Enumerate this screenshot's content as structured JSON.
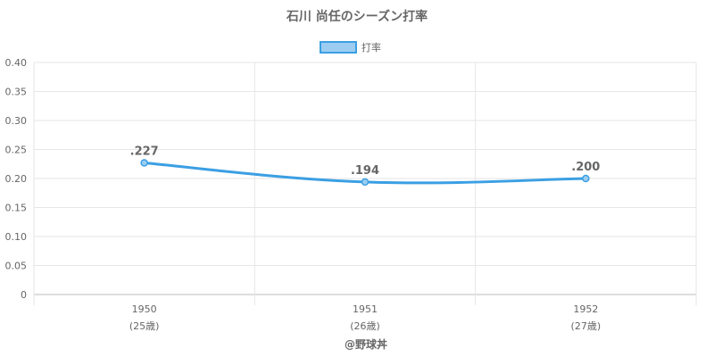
{
  "chart_data": {
    "type": "line",
    "title": "石川 尚任のシーズン打率",
    "legend": {
      "label": "打率",
      "position": "top"
    },
    "categories": [
      "1950",
      "1951",
      "1952"
    ],
    "category_sublabels": [
      "(25歳)",
      "(26歳)",
      "(27歳)"
    ],
    "series": [
      {
        "name": "打率",
        "values": [
          0.227,
          0.194,
          0.2
        ],
        "labels": [
          ".227",
          ".194",
          ".200"
        ]
      }
    ],
    "y_ticks": [
      "0",
      "0.05",
      "0.10",
      "0.15",
      "0.20",
      "0.25",
      "0.30",
      "0.35",
      "0.40"
    ],
    "ylim": [
      0,
      0.4
    ],
    "grid": true,
    "colors": {
      "line": "#3b9fe3",
      "fill": "#9ccdf1",
      "grid": "#e6e6e6",
      "text": "#666666"
    }
  },
  "credit": "@野球丼"
}
